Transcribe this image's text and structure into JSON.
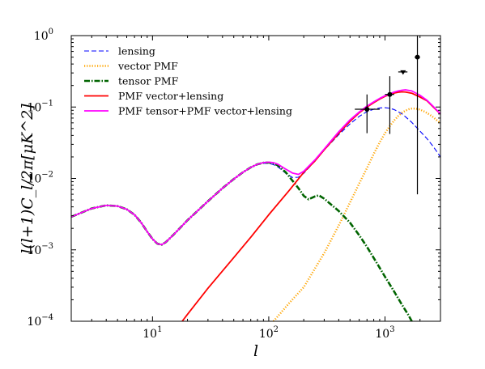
{
  "chart_data": {
    "type": "line",
    "title": "",
    "xlabel": "l",
    "ylabel": "l(l+1)C_l/2π[μK^2]",
    "xscale": "log",
    "yscale": "log",
    "xlim": [
      2,
      3000
    ],
    "ylim": [
      0.0001,
      1
    ],
    "grid": false,
    "legend_position": "top-left",
    "x_ticks": [
      {
        "value": 10,
        "base": "10",
        "exp": "1"
      },
      {
        "value": 100,
        "base": "10",
        "exp": "2"
      },
      {
        "value": 1000,
        "base": "10",
        "exp": "3"
      }
    ],
    "y_ticks": [
      {
        "value": 0.0001,
        "base": "10",
        "exp": "−4"
      },
      {
        "value": 0.001,
        "base": "10",
        "exp": "−3"
      },
      {
        "value": 0.01,
        "base": "10",
        "exp": "−2"
      },
      {
        "value": 0.1,
        "base": "10",
        "exp": "−1"
      },
      {
        "value": 1,
        "base": "10",
        "exp": "0"
      }
    ],
    "series": [
      {
        "name": "lensing",
        "color": "#0000ff",
        "style": "dashed",
        "points": [
          [
            2,
            0.0029
          ],
          [
            3,
            0.0038
          ],
          [
            4,
            0.0042
          ],
          [
            5,
            0.0041
          ],
          [
            6,
            0.0037
          ],
          [
            7,
            0.0031
          ],
          [
            8,
            0.0024
          ],
          [
            9,
            0.0018
          ],
          [
            10,
            0.00142
          ],
          [
            11,
            0.00122
          ],
          [
            12,
            0.00118
          ],
          [
            13,
            0.00128
          ],
          [
            15,
            0.0016
          ],
          [
            20,
            0.0026
          ],
          [
            30,
            0.0048
          ],
          [
            40,
            0.0073
          ],
          [
            50,
            0.0098
          ],
          [
            60,
            0.0122
          ],
          [
            70,
            0.0143
          ],
          [
            80,
            0.0157
          ],
          [
            90,
            0.0163
          ],
          [
            100,
            0.0163
          ],
          [
            110,
            0.0156
          ],
          [
            120,
            0.0145
          ],
          [
            140,
            0.0118
          ],
          [
            160,
            0.0103
          ],
          [
            180,
            0.0104
          ],
          [
            200,
            0.0118
          ],
          [
            250,
            0.0175
          ],
          [
            300,
            0.025
          ],
          [
            400,
            0.041
          ],
          [
            500,
            0.058
          ],
          [
            600,
            0.074
          ],
          [
            700,
            0.086
          ],
          [
            800,
            0.093
          ],
          [
            900,
            0.097
          ],
          [
            1000,
            0.098
          ],
          [
            1100,
            0.096
          ],
          [
            1200,
            0.092
          ],
          [
            1300,
            0.086
          ],
          [
            1400,
            0.08
          ],
          [
            1500,
            0.073
          ],
          [
            1700,
            0.061
          ],
          [
            2000,
            0.046
          ],
          [
            2300,
            0.036
          ],
          [
            2600,
            0.028
          ],
          [
            3000,
            0.02
          ]
        ]
      },
      {
        "name": "vector PMF",
        "color": "#ffa500",
        "style": "dotted",
        "points": [
          [
            110,
            0.0001
          ],
          [
            150,
            0.00018
          ],
          [
            200,
            0.0003
          ],
          [
            300,
            0.0009
          ],
          [
            400,
            0.0022
          ],
          [
            500,
            0.0046
          ],
          [
            600,
            0.0085
          ],
          [
            700,
            0.014
          ],
          [
            800,
            0.022
          ],
          [
            900,
            0.032
          ],
          [
            1000,
            0.043
          ],
          [
            1100,
            0.054
          ],
          [
            1200,
            0.065
          ],
          [
            1300,
            0.075
          ],
          [
            1400,
            0.083
          ],
          [
            1500,
            0.089
          ],
          [
            1600,
            0.093
          ],
          [
            1700,
            0.095
          ],
          [
            1800,
            0.095
          ],
          [
            1900,
            0.094
          ],
          [
            2000,
            0.092
          ],
          [
            2200,
            0.086
          ],
          [
            2400,
            0.079
          ],
          [
            2600,
            0.072
          ],
          [
            2800,
            0.065
          ],
          [
            3000,
            0.06
          ]
        ]
      },
      {
        "name": "tensor PMF",
        "color": "#006400",
        "style": "dashdot",
        "points": [
          [
            2,
            0.0029
          ],
          [
            3,
            0.0038
          ],
          [
            4,
            0.0042
          ],
          [
            5,
            0.0041
          ],
          [
            6,
            0.0037
          ],
          [
            7,
            0.0031
          ],
          [
            8,
            0.0024
          ],
          [
            9,
            0.0018
          ],
          [
            10,
            0.00142
          ],
          [
            11,
            0.00122
          ],
          [
            12,
            0.00118
          ],
          [
            13,
            0.00128
          ],
          [
            15,
            0.0016
          ],
          [
            20,
            0.0026
          ],
          [
            30,
            0.0048
          ],
          [
            40,
            0.0073
          ],
          [
            50,
            0.0098
          ],
          [
            60,
            0.0122
          ],
          [
            70,
            0.0143
          ],
          [
            80,
            0.0158
          ],
          [
            90,
            0.0166
          ],
          [
            100,
            0.0167
          ],
          [
            110,
            0.0162
          ],
          [
            120,
            0.0152
          ],
          [
            140,
            0.0122
          ],
          [
            160,
            0.0093
          ],
          [
            180,
            0.0073
          ],
          [
            200,
            0.0057
          ],
          [
            220,
            0.0051
          ],
          [
            250,
            0.0056
          ],
          [
            270,
            0.0058
          ],
          [
            300,
            0.0052
          ],
          [
            400,
            0.0035
          ],
          [
            500,
            0.0024
          ],
          [
            600,
            0.0016
          ],
          [
            700,
            0.0011
          ],
          [
            800,
            0.00077
          ],
          [
            900,
            0.00056
          ],
          [
            1000,
            0.00042
          ],
          [
            1200,
            0.00026
          ],
          [
            1400,
            0.00017
          ],
          [
            1600,
            0.00012
          ],
          [
            1700,
            0.0001
          ]
        ]
      },
      {
        "name": "PMF vector+lensing",
        "color": "#ff0000",
        "style": "solid",
        "points": [
          [
            18,
            0.0001
          ],
          [
            20,
            0.000125
          ],
          [
            30,
            0.00029
          ],
          [
            50,
            0.00078
          ],
          [
            70,
            0.0015
          ],
          [
            100,
            0.0031
          ],
          [
            150,
            0.0068
          ],
          [
            200,
            0.0122
          ],
          [
            250,
            0.0176
          ],
          [
            300,
            0.0251
          ],
          [
            400,
            0.043
          ],
          [
            500,
            0.063
          ],
          [
            600,
            0.083
          ],
          [
            700,
            0.1
          ],
          [
            800,
            0.115
          ],
          [
            900,
            0.129
          ],
          [
            1000,
            0.141
          ],
          [
            1100,
            0.15
          ],
          [
            1200,
            0.157
          ],
          [
            1300,
            0.161
          ],
          [
            1400,
            0.163
          ],
          [
            1500,
            0.162
          ],
          [
            1700,
            0.156
          ],
          [
            2000,
            0.138
          ],
          [
            2300,
            0.122
          ],
          [
            2600,
            0.1
          ],
          [
            3000,
            0.08
          ]
        ]
      },
      {
        "name": "PMF tensor+PMF vector+lensing",
        "color": "#ff00ff",
        "style": "solid",
        "points": [
          [
            2,
            0.0029
          ],
          [
            3,
            0.0038
          ],
          [
            4,
            0.0042
          ],
          [
            5,
            0.0041
          ],
          [
            6,
            0.0037
          ],
          [
            7,
            0.0031
          ],
          [
            8,
            0.0024
          ],
          [
            9,
            0.0018
          ],
          [
            10,
            0.00142
          ],
          [
            11,
            0.00122
          ],
          [
            12,
            0.00118
          ],
          [
            13,
            0.00128
          ],
          [
            15,
            0.0016
          ],
          [
            20,
            0.0026
          ],
          [
            30,
            0.0048
          ],
          [
            40,
            0.0073
          ],
          [
            50,
            0.0098
          ],
          [
            60,
            0.0122
          ],
          [
            70,
            0.0143
          ],
          [
            80,
            0.0158
          ],
          [
            90,
            0.0167
          ],
          [
            100,
            0.0169
          ],
          [
            110,
            0.0166
          ],
          [
            120,
            0.0158
          ],
          [
            140,
            0.0135
          ],
          [
            160,
            0.0119
          ],
          [
            180,
            0.0114
          ],
          [
            200,
            0.0126
          ],
          [
            250,
            0.0182
          ],
          [
            300,
            0.0258
          ],
          [
            400,
            0.045
          ],
          [
            500,
            0.066
          ],
          [
            600,
            0.085
          ],
          [
            700,
            0.103
          ],
          [
            800,
            0.118
          ],
          [
            900,
            0.132
          ],
          [
            1000,
            0.144
          ],
          [
            1100,
            0.153
          ],
          [
            1200,
            0.162
          ],
          [
            1300,
            0.168
          ],
          [
            1400,
            0.172
          ],
          [
            1500,
            0.174
          ],
          [
            1700,
            0.168
          ],
          [
            2000,
            0.146
          ],
          [
            2300,
            0.124
          ],
          [
            2600,
            0.102
          ],
          [
            3000,
            0.08
          ]
        ]
      }
    ],
    "error_points": [
      {
        "x": 700,
        "y": 0.093,
        "xerr": [
          550,
          900
        ],
        "yerr": [
          0.043,
          0.15
        ]
      },
      {
        "x": 1100,
        "y": 0.15,
        "xerr": [
          1000,
          1200
        ],
        "yerr": [
          0.042,
          0.27
        ]
      },
      {
        "x": 1430,
        "y": 0.31,
        "xerr": [
          1300,
          1560
        ],
        "yerr": [
          0.31,
          0.31
        ],
        "marker": "triangle-down"
      },
      {
        "x": 1900,
        "y": 0.5,
        "xerr": [
          1800,
          2000
        ],
        "yerr": [
          0.006,
          1.0
        ]
      }
    ]
  }
}
